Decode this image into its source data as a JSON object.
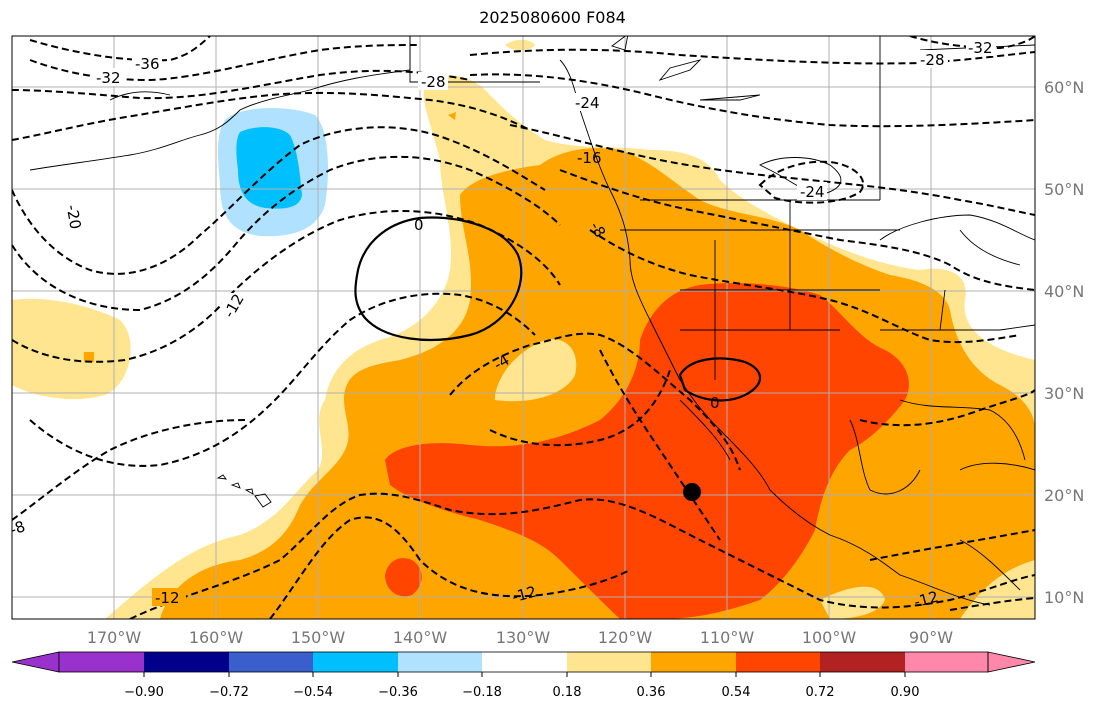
{
  "title": "2025080600 F084",
  "longitude_labels": [
    "170°W",
    "160°W",
    "150°W",
    "140°W",
    "130°W",
    "120°W",
    "110°W",
    "100°W",
    "90°W"
  ],
  "latitude_labels": [
    "60°N",
    "50°N",
    "40°N",
    "30°N",
    "20°N",
    "10°N"
  ],
  "colorbar": {
    "tick_labels": [
      "−0.90",
      "−0.72",
      "−0.54",
      "−0.36",
      "−0.18",
      "0.18",
      "0.36",
      "0.54",
      "0.72",
      "0.90"
    ],
    "colors": [
      "#9932cc",
      "#00008b",
      "#3a5fcd",
      "#00bfff",
      "#b0e2ff",
      "#ffffff",
      "#ffe58f",
      "#ffa500",
      "#ff4500",
      "#b22222",
      "#ff88aa"
    ],
    "extend": "both"
  },
  "contour_labels": [
    "-36",
    "-32",
    "-28",
    "-32",
    "-28",
    "-24",
    "-24",
    "-20",
    "-16",
    "-12",
    "-8",
    "-8",
    "0",
    "-4",
    "0",
    "-12",
    "-12",
    "-12"
  ],
  "marker": {
    "label": "storm-center",
    "color": "#000000"
  },
  "colors": {
    "land_outline": "#000000",
    "grid": "#b0b0b0",
    "axis_label": "#777777"
  }
}
